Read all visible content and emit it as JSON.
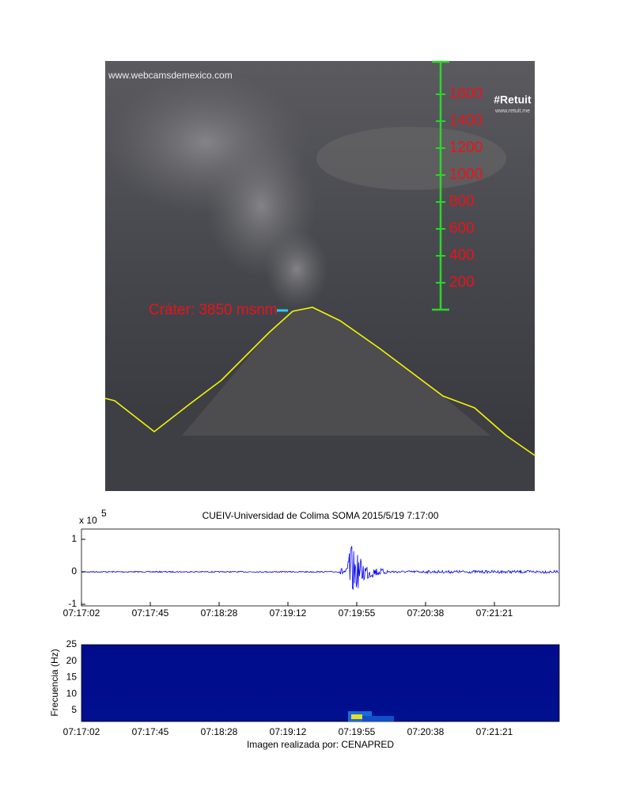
{
  "photo": {
    "watermark": "www.webcamsdemexico.com",
    "logo": "#Retuit",
    "logo_url": "www.retuit.me",
    "crater_label": "Cráter: 3850 msnm",
    "scale_labels": [
      "1600",
      "1400",
      "1200",
      "1000",
      "800",
      "600",
      "400",
      "200"
    ]
  },
  "seismogram": {
    "title": "CUEIV-Universidad de Colima SOMA 2015/5/19 7:17:00",
    "multiplier": "x 10",
    "exponent": "5",
    "yticks": [
      "1",
      "0",
      "-1"
    ],
    "xticks": [
      "07:17:02",
      "07:17:45",
      "07:18:28",
      "07:19:12",
      "07:19:55",
      "07:20:38",
      "07:21:21"
    ]
  },
  "spectrogram": {
    "ylabel": "Frecuencia (Hz)",
    "yticks": [
      "25",
      "20",
      "15",
      "10",
      "5"
    ],
    "xticks": [
      "07:17:02",
      "07:17:45",
      "07:18:28",
      "07:19:12",
      "07:19:55",
      "07:20:38",
      "07:21:21"
    ],
    "caption": "Imagen realizada por: CENAPRED"
  }
}
